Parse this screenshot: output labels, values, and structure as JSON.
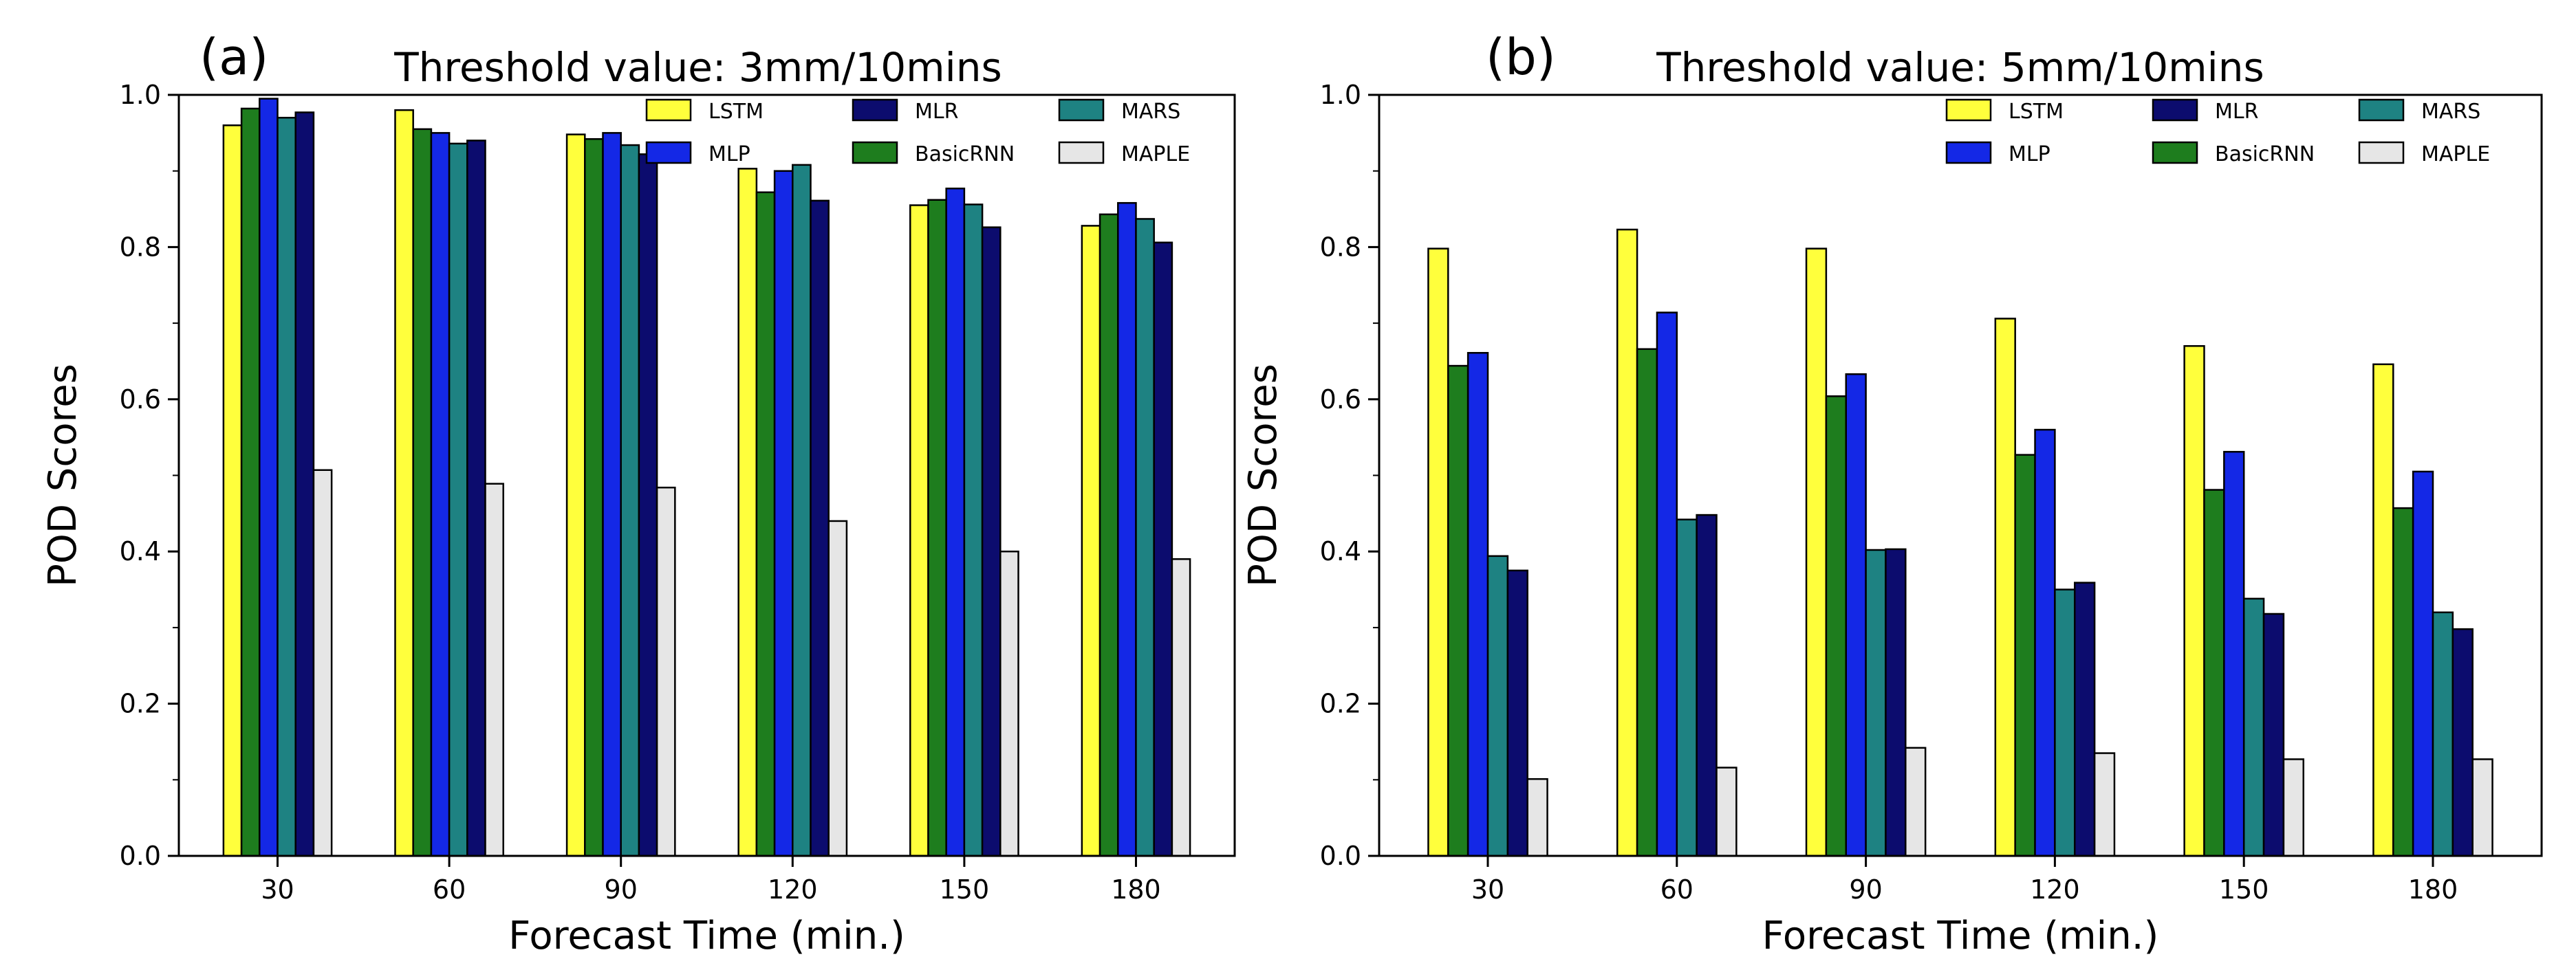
{
  "legend_order": [
    0,
    2,
    4,
    1,
    3,
    5
  ],
  "series_meta": [
    {
      "name": "LSTM",
      "color": "#ffff3c"
    },
    {
      "name": "BasicRNN",
      "color": "#1e7d1e"
    },
    {
      "name": "MLP",
      "color": "#1428e6"
    },
    {
      "name": "MARS",
      "color": "#1e8282"
    },
    {
      "name": "MLR",
      "color": "#0c0c6e"
    },
    {
      "name": "MAPLE",
      "color": "#e6e6e6"
    }
  ],
  "chart_data": [
    {
      "type": "bar",
      "panel_label": "(a)",
      "title": "Threshold value: 3mm/10mins",
      "xlabel": "Forecast Time (min.)",
      "ylabel": "POD Scores",
      "ylim": [
        0,
        1.0
      ],
      "yticks": [
        "0.0",
        "0.2",
        "0.4",
        "0.6",
        "0.8",
        "1.0"
      ],
      "categories": [
        "30",
        "60",
        "90",
        "120",
        "150",
        "180"
      ],
      "legend_position": "top-right",
      "series": [
        {
          "name": "LSTM",
          "values": [
            0.96,
            0.98,
            0.948,
            0.903,
            0.855,
            0.828
          ]
        },
        {
          "name": "BasicRNN",
          "values": [
            0.982,
            0.955,
            0.942,
            0.872,
            0.862,
            0.843
          ]
        },
        {
          "name": "MLP",
          "values": [
            0.995,
            0.95,
            0.95,
            0.9,
            0.877,
            0.858
          ]
        },
        {
          "name": "MARS",
          "values": [
            0.97,
            0.936,
            0.934,
            0.908,
            0.856,
            0.837
          ]
        },
        {
          "name": "MLR",
          "values": [
            0.977,
            0.94,
            0.922,
            0.861,
            0.826,
            0.806
          ]
        },
        {
          "name": "MAPLE",
          "values": [
            0.507,
            0.489,
            0.484,
            0.44,
            0.4,
            0.39
          ]
        }
      ]
    },
    {
      "type": "bar",
      "panel_label": "(b)",
      "title": "Threshold value: 5mm/10mins",
      "xlabel": "Forecast Time (min.)",
      "ylabel": "POD Scores",
      "ylim": [
        0,
        1.0
      ],
      "yticks": [
        "0.0",
        "0.2",
        "0.4",
        "0.6",
        "0.8",
        "1.0"
      ],
      "categories": [
        "30",
        "60",
        "90",
        "120",
        "150",
        "180"
      ],
      "legend_position": "top-right",
      "series": [
        {
          "name": "LSTM",
          "values": [
            0.798,
            0.823,
            0.798,
            0.706,
            0.67,
            0.646
          ]
        },
        {
          "name": "BasicRNN",
          "values": [
            0.644,
            0.666,
            0.604,
            0.527,
            0.481,
            0.457
          ]
        },
        {
          "name": "MLP",
          "values": [
            0.661,
            0.714,
            0.633,
            0.56,
            0.531,
            0.505
          ]
        },
        {
          "name": "MARS",
          "values": [
            0.394,
            0.442,
            0.402,
            0.35,
            0.338,
            0.32
          ]
        },
        {
          "name": "MLR",
          "values": [
            0.375,
            0.448,
            0.403,
            0.359,
            0.318,
            0.298
          ]
        },
        {
          "name": "MAPLE",
          "values": [
            0.101,
            0.116,
            0.142,
            0.135,
            0.127,
            0.127
          ]
        }
      ]
    }
  ]
}
